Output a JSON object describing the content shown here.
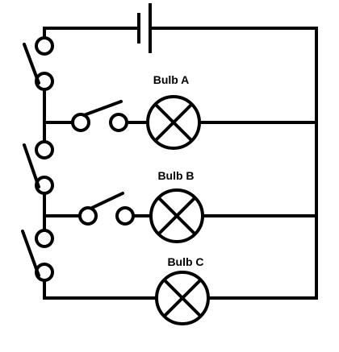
{
  "bulbs": {
    "a": {
      "label": "Bulb A"
    },
    "b": {
      "label": "Bulb B"
    },
    "c": {
      "label": "Bulb C"
    }
  }
}
